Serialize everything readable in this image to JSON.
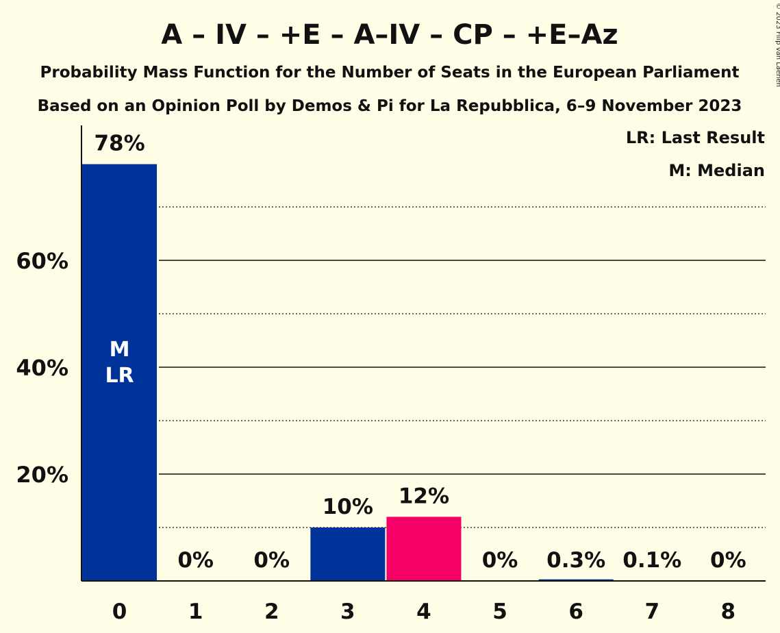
{
  "title": "A – IV – +E – A–IV – CP – +E–Az",
  "subtitle1": "Probability Mass Function for the Number of Seats in the European Parliament",
  "subtitle2": "Based on an Opinion Poll by Demos & Pi for La Repubblica, 6–9 November 2023",
  "copyright": "© 2023 Filip van Laenen",
  "legend": {
    "lr": "LR: Last Result",
    "median": "M: Median"
  },
  "colors": {
    "background": "#fffde6",
    "primary": "#003399",
    "highlight": "#f50066",
    "text": "#111111"
  },
  "chart_data": {
    "type": "bar",
    "categories": [
      "0",
      "1",
      "2",
      "3",
      "4",
      "5",
      "6",
      "7",
      "8"
    ],
    "values": [
      78,
      0,
      0,
      10,
      12,
      0,
      0.3,
      0.1,
      0
    ],
    "data_labels": [
      "78%",
      "0%",
      "0%",
      "10%",
      "12%",
      "0%",
      "0.3%",
      "0.1%",
      "0%"
    ],
    "bar_colors": [
      "#003399",
      "#003399",
      "#003399",
      "#003399",
      "#f50066",
      "#003399",
      "#003399",
      "#003399",
      "#003399"
    ],
    "bar_annotations": [
      [
        "M",
        "LR"
      ],
      [],
      [],
      [],
      [],
      [],
      [],
      [],
      []
    ],
    "yticks": [
      20,
      40,
      60
    ],
    "ytick_labels": [
      "20%",
      "40%",
      "60%"
    ],
    "minor_gridlines": [
      10,
      30,
      50,
      70
    ],
    "ylim": [
      0,
      85
    ],
    "grid": true,
    "legend_position": "top-right"
  }
}
